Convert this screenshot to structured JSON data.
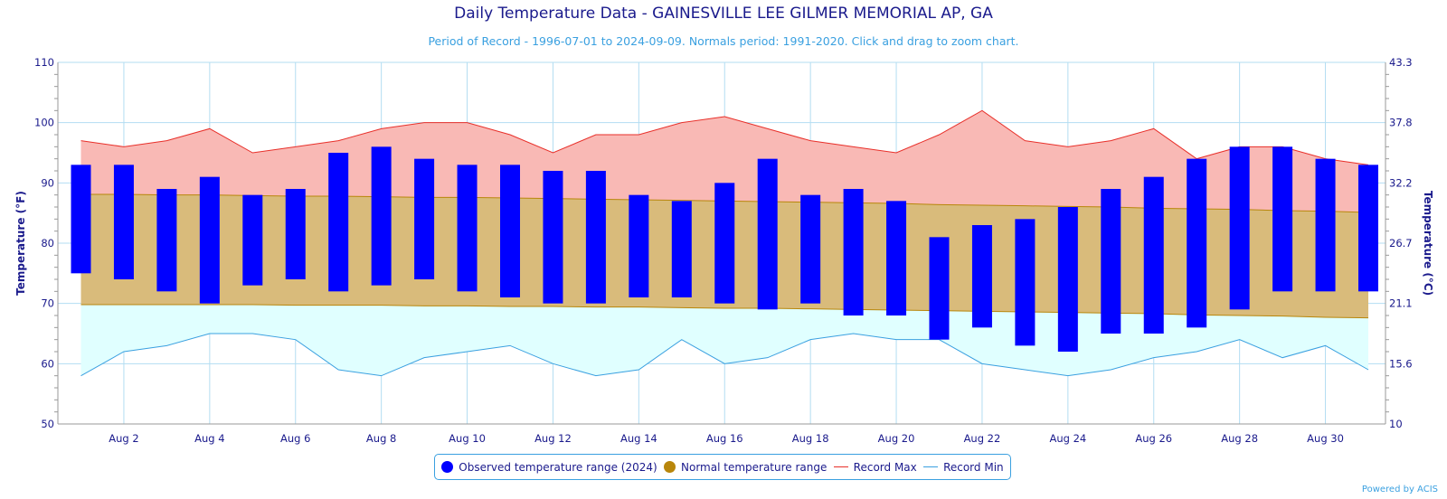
{
  "title": "Daily Temperature Data - GAINESVILLE LEE GILMER MEMORIAL AP, GA",
  "subtitle": "Period of Record - 1996-07-01 to 2024-09-09. Normals period: 1991-2020. Click and drag to zoom chart.",
  "credit": "Powered by ACIS",
  "colors": {
    "observed": "#0000ff",
    "normal_fill": "#d9bb7b",
    "normal_line": "#b8860b",
    "record_max_line": "#e8302a",
    "record_max_fill": "#f9b9b5",
    "record_min_line": "#3aa0e0",
    "record_min_fill": "#e0ffff",
    "grid": "#b3ddf2",
    "text": "#1a1a8c"
  },
  "chart_data": {
    "type": "bar",
    "xlabel": "",
    "ylabel": "Temperature (°F)",
    "ylabel_right": "Temperature (°C)",
    "ylim": [
      50,
      110
    ],
    "yticks": [
      50,
      60,
      70,
      80,
      90,
      100,
      110
    ],
    "yticks_right": [
      "10",
      "15.6",
      "21.1",
      "26.7",
      "32.2",
      "37.8",
      "43.3"
    ],
    "x": [
      1,
      2,
      3,
      4,
      5,
      6,
      7,
      8,
      9,
      10,
      11,
      12,
      13,
      14,
      15,
      16,
      17,
      18,
      19,
      20,
      21,
      22,
      23,
      24,
      25,
      26,
      27,
      28,
      29,
      30,
      31
    ],
    "x_tick_labels": [
      "Aug 2",
      "Aug 4",
      "Aug 6",
      "Aug 8",
      "Aug 10",
      "Aug 12",
      "Aug 14",
      "Aug 16",
      "Aug 18",
      "Aug 20",
      "Aug 22",
      "Aug 24",
      "Aug 26",
      "Aug 28",
      "Aug 30"
    ],
    "x_tick_days": [
      2,
      4,
      6,
      8,
      10,
      12,
      14,
      16,
      18,
      20,
      22,
      24,
      26,
      28,
      30
    ],
    "legend_placement": "bottom-center",
    "grid": true,
    "series": [
      {
        "name": "Observed temperature range (2024)",
        "low": [
          75,
          74,
          72,
          70,
          73,
          74,
          72,
          73,
          74,
          72,
          71,
          70,
          70,
          71,
          71,
          70,
          69,
          70,
          68,
          68,
          64,
          66,
          63,
          62,
          65,
          65,
          66,
          69,
          72,
          72,
          72
        ],
        "high": [
          93,
          93,
          89,
          91,
          88,
          89,
          95,
          96,
          94,
          93,
          93,
          92,
          92,
          88,
          87,
          90,
          94,
          88,
          89,
          87,
          81,
          83,
          84,
          86,
          89,
          91,
          94,
          96,
          96,
          94,
          93
        ]
      },
      {
        "name": "Normal temperature range",
        "low": [
          69.8,
          69.8,
          69.8,
          69.8,
          69.8,
          69.7,
          69.7,
          69.7,
          69.6,
          69.6,
          69.5,
          69.5,
          69.4,
          69.4,
          69.3,
          69.2,
          69.2,
          69.1,
          69.0,
          68.9,
          68.8,
          68.7,
          68.6,
          68.5,
          68.4,
          68.3,
          68.1,
          68.0,
          67.9,
          67.7,
          67.6
        ],
        "high": [
          88.1,
          88.1,
          88.0,
          88.0,
          87.9,
          87.8,
          87.8,
          87.7,
          87.6,
          87.6,
          87.5,
          87.4,
          87.3,
          87.2,
          87.1,
          87.0,
          86.9,
          86.8,
          86.7,
          86.6,
          86.4,
          86.3,
          86.2,
          86.1,
          86.0,
          85.8,
          85.7,
          85.6,
          85.4,
          85.3,
          85.1
        ]
      },
      {
        "name": "Record Max",
        "values": [
          97,
          96,
          97,
          99,
          95,
          96,
          97,
          99,
          100,
          100,
          98,
          95,
          98,
          98,
          100,
          101,
          99,
          97,
          96,
          95,
          98,
          102,
          97,
          96,
          97,
          99,
          94,
          96,
          96,
          94,
          93
        ]
      },
      {
        "name": "Record Min",
        "values": [
          58,
          62,
          63,
          65,
          65,
          64,
          59,
          58,
          61,
          62,
          63,
          60,
          58,
          59,
          64,
          60,
          61,
          64,
          65,
          64,
          64,
          60,
          59,
          58,
          59,
          61,
          62,
          64,
          61,
          63,
          59
        ]
      }
    ]
  }
}
